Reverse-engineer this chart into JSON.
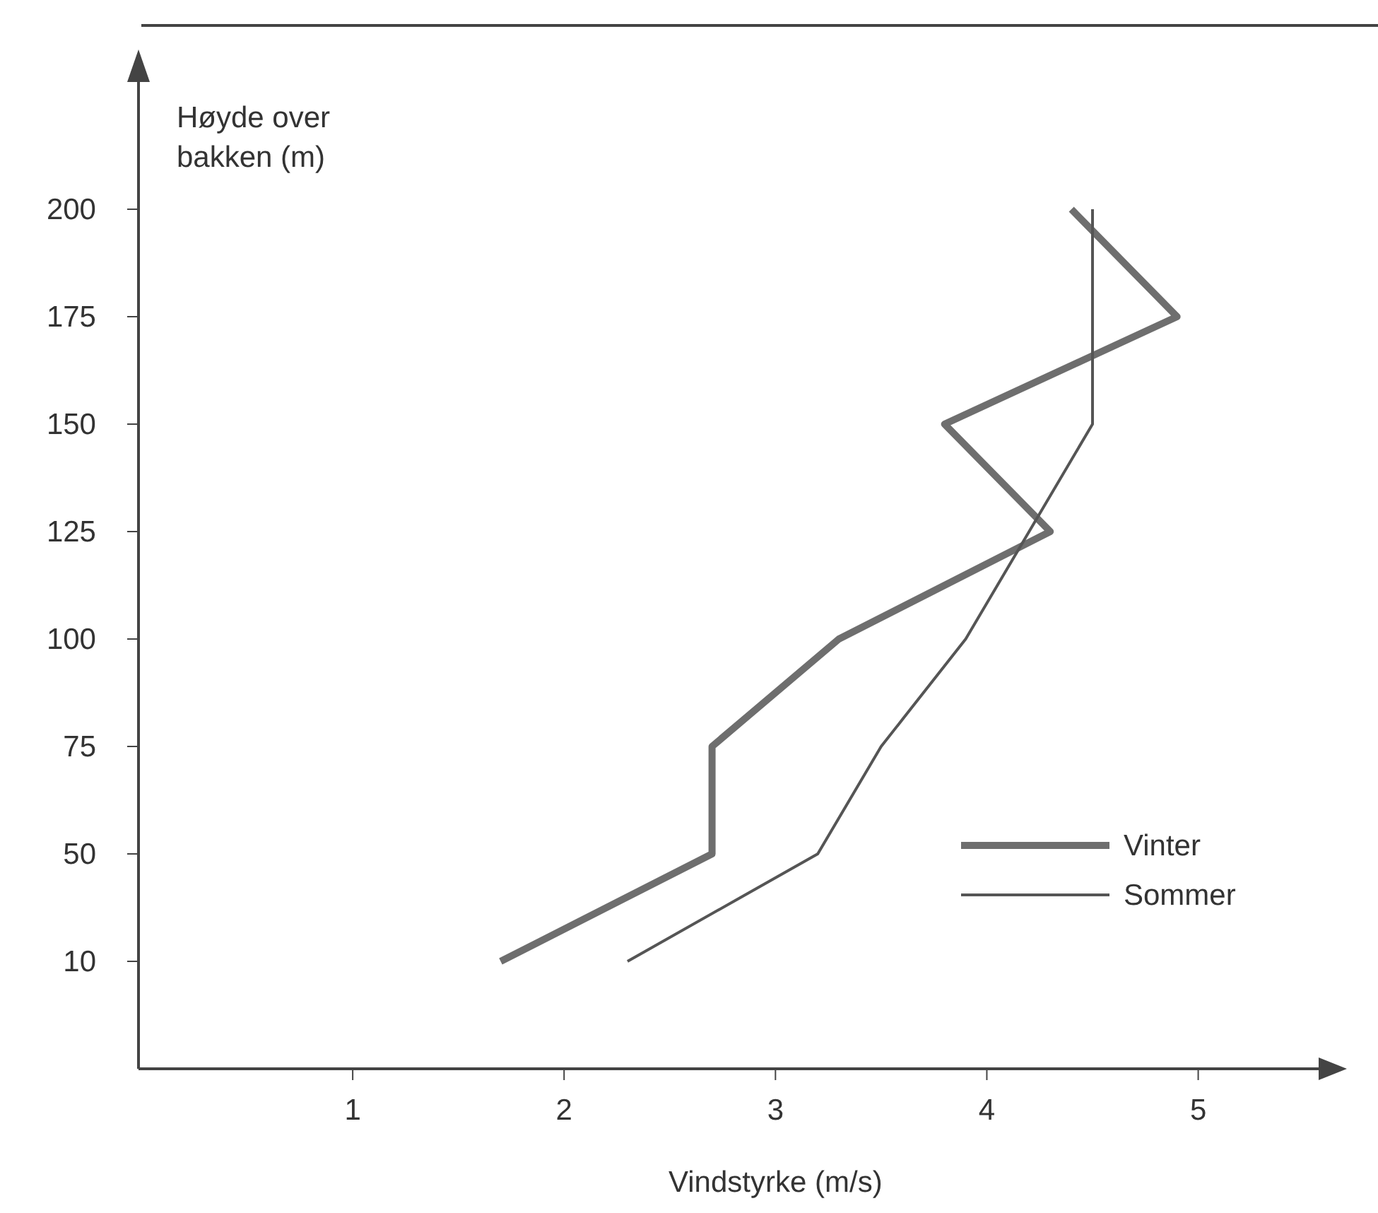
{
  "chart_data": {
    "type": "line",
    "orientation": "horizontal",
    "xlabel": "Vindstyrke (m/s)",
    "ylabel": "Høyde over bakken (m)",
    "categories": [
      "200",
      "175",
      "150",
      "125",
      "100",
      "75",
      "50",
      "10"
    ],
    "xlim": [
      0,
      5.65
    ],
    "xticks": [
      1,
      2,
      3,
      4,
      5
    ],
    "series": [
      {
        "name": "Vinter",
        "color": "#6e6e6e",
        "values": [
          4.4,
          4.9,
          3.8,
          4.3,
          3.3,
          2.7,
          2.7,
          1.7
        ]
      },
      {
        "name": "Sommer",
        "color": "#555555",
        "values": [
          4.5,
          4.5,
          4.5,
          4.2,
          3.9,
          3.5,
          3.2,
          2.3
        ]
      }
    ],
    "legend": "bottom right",
    "grid": false,
    "marker": "none",
    "line_style": "solid"
  }
}
